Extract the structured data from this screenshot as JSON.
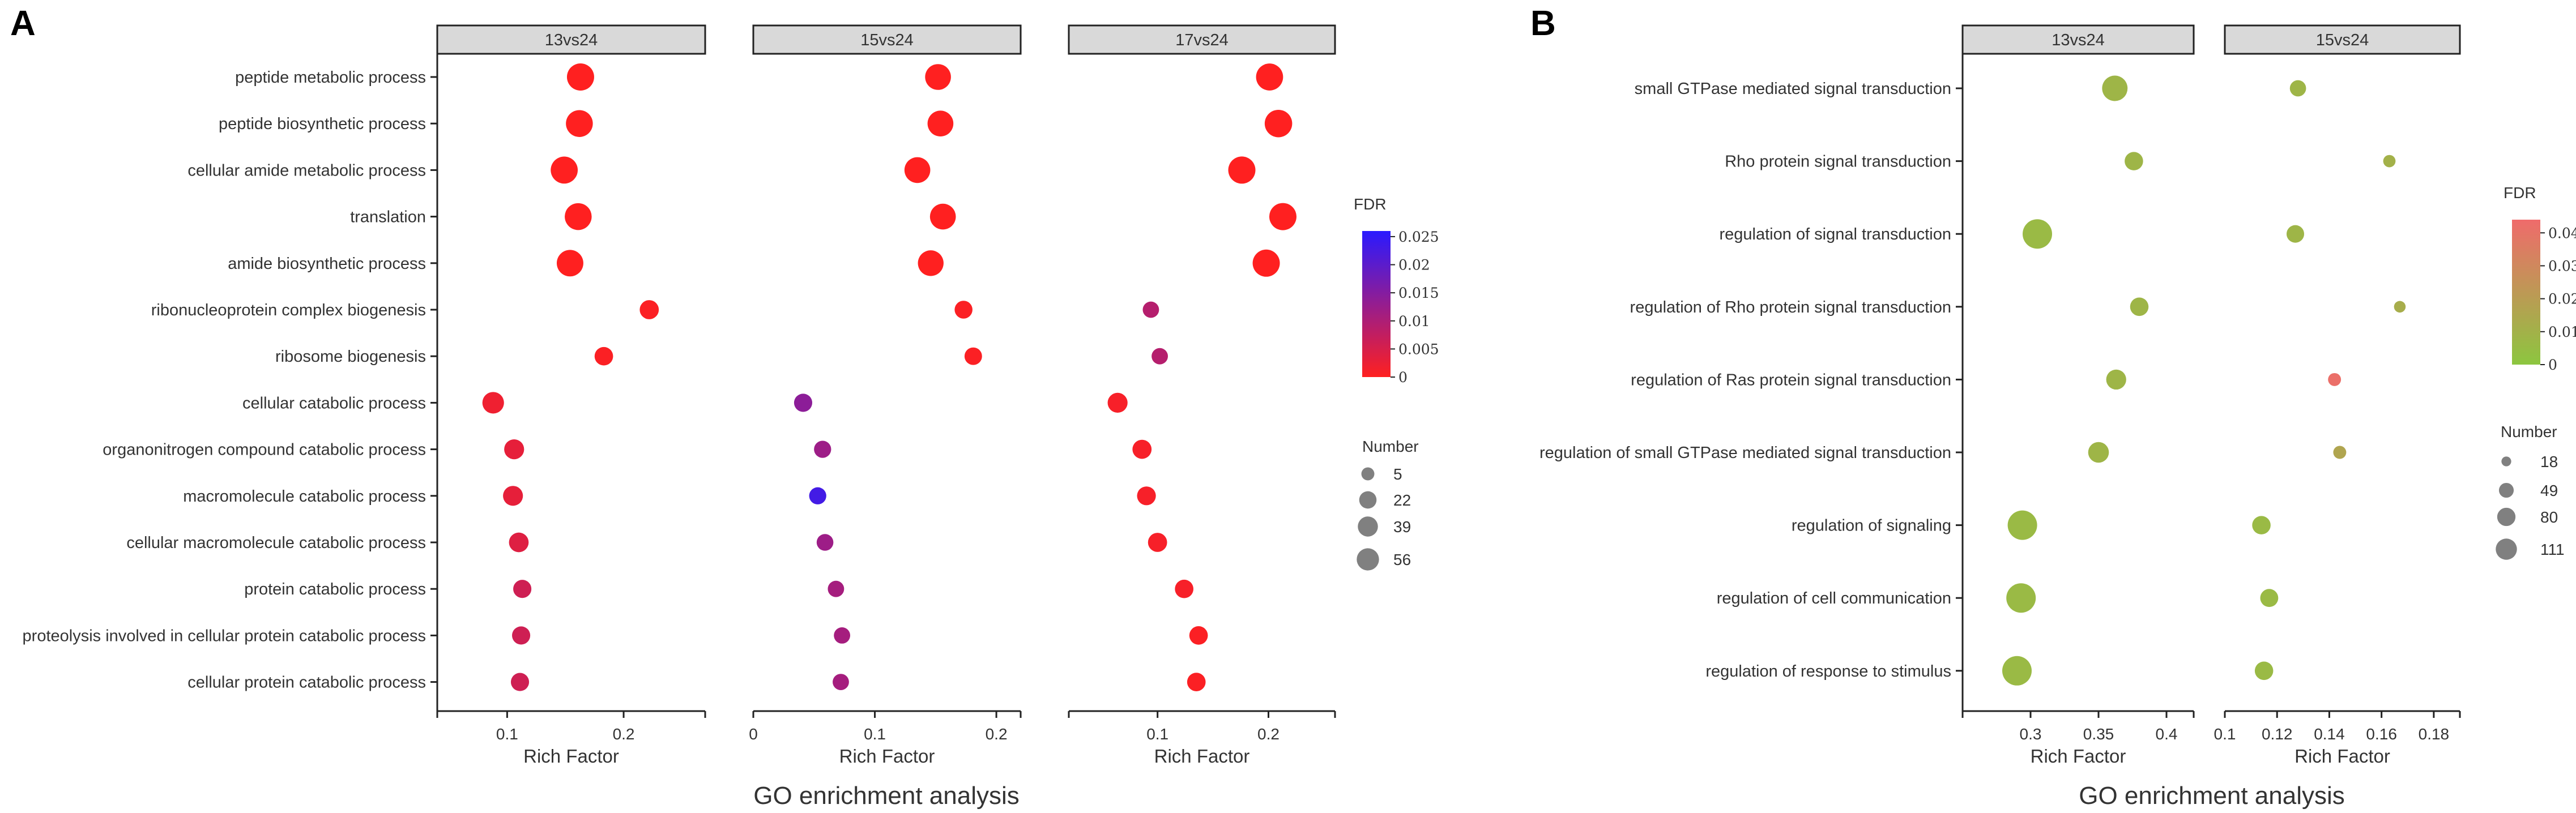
{
  "chart_data": [
    {
      "panel": "A",
      "type": "scatter",
      "caption": "GO enrichment analysis",
      "xlabel": "Rich Factor",
      "terms": [
        "peptide metabolic process",
        "peptide biosynthetic process",
        "cellular amide metabolic process",
        "translation",
        "amide biosynthetic process",
        "ribonucleoprotein complex biogenesis",
        "ribosome biogenesis",
        "cellular catabolic process",
        "organonitrogen compound catabolic process",
        "macromolecule catabolic process",
        "cellular macromolecule catabolic process",
        "protein catabolic process",
        "proteolysis involved in cellular protein catabolic process",
        "cellular protein catabolic process"
      ],
      "facets": [
        {
          "name": "13vs24",
          "xlim": [
            0.04,
            0.27
          ],
          "ticks": [
            0.1,
            0.2
          ],
          "tick_labels": [
            "0.1",
            "0.2"
          ],
          "points": [
            {
              "x": 0.163,
              "number": 56,
              "fdr": 0.0
            },
            {
              "x": 0.162,
              "number": 54,
              "fdr": 0.0
            },
            {
              "x": 0.149,
              "number": 55,
              "fdr": 0.0
            },
            {
              "x": 0.161,
              "number": 54,
              "fdr": 0.0
            },
            {
              "x": 0.154,
              "number": 52,
              "fdr": 0.0
            },
            {
              "x": 0.222,
              "number": 14,
              "fdr": 0.0005
            },
            {
              "x": 0.183,
              "number": 12,
              "fdr": 0.0005
            },
            {
              "x": 0.088,
              "number": 24,
              "fdr": 0.002
            },
            {
              "x": 0.106,
              "number": 17,
              "fdr": 0.003
            },
            {
              "x": 0.105,
              "number": 17,
              "fdr": 0.003
            },
            {
              "x": 0.11,
              "number": 16,
              "fdr": 0.004
            },
            {
              "x": 0.113,
              "number": 11,
              "fdr": 0.006
            },
            {
              "x": 0.112,
              "number": 11,
              "fdr": 0.006
            },
            {
              "x": 0.111,
              "number": 11,
              "fdr": 0.006
            }
          ]
        },
        {
          "name": "15vs24",
          "xlim": [
            0.0,
            0.22
          ],
          "ticks": [
            0,
            0.1,
            0.2
          ],
          "tick_labels": [
            "0",
            "0.1",
            "0.2"
          ],
          "points": [
            {
              "x": 0.152,
              "number": 47,
              "fdr": 0.0
            },
            {
              "x": 0.154,
              "number": 47,
              "fdr": 0.0
            },
            {
              "x": 0.135,
              "number": 47,
              "fdr": 0.0
            },
            {
              "x": 0.156,
              "number": 47,
              "fdr": 0.0
            },
            {
              "x": 0.146,
              "number": 46,
              "fdr": 0.0
            },
            {
              "x": 0.173,
              "number": 10,
              "fdr": 0.0005
            },
            {
              "x": 0.181,
              "number": 9,
              "fdr": 0.0005
            },
            {
              "x": 0.041,
              "number": 11,
              "fdr": 0.014
            },
            {
              "x": 0.057,
              "number": 8,
              "fdr": 0.012
            },
            {
              "x": 0.053,
              "number": 8,
              "fdr": 0.023
            },
            {
              "x": 0.059,
              "number": 7,
              "fdr": 0.012
            },
            {
              "x": 0.068,
              "number": 6,
              "fdr": 0.011
            },
            {
              "x": 0.073,
              "number": 6,
              "fdr": 0.011
            },
            {
              "x": 0.072,
              "number": 6,
              "fdr": 0.011
            }
          ]
        },
        {
          "name": "17vs24",
          "xlim": [
            0.02,
            0.26
          ],
          "ticks": [
            0.1,
            0.2
          ],
          "tick_labels": [
            "0.1",
            "0.2"
          ],
          "points": [
            {
              "x": 0.201,
              "number": 55,
              "fdr": 0.0
            },
            {
              "x": 0.209,
              "number": 58,
              "fdr": 0.0
            },
            {
              "x": 0.176,
              "number": 56,
              "fdr": 0.0
            },
            {
              "x": 0.213,
              "number": 56,
              "fdr": 0.0
            },
            {
              "x": 0.198,
              "number": 56,
              "fdr": 0.0
            },
            {
              "x": 0.094,
              "number": 6,
              "fdr": 0.009
            },
            {
              "x": 0.102,
              "number": 6,
              "fdr": 0.009
            },
            {
              "x": 0.064,
              "number": 17,
              "fdr": 0.001
            },
            {
              "x": 0.086,
              "number": 14,
              "fdr": 0.001
            },
            {
              "x": 0.09,
              "number": 13,
              "fdr": 0.001
            },
            {
              "x": 0.1,
              "number": 14,
              "fdr": 0.001
            },
            {
              "x": 0.124,
              "number": 12,
              "fdr": 0.001
            },
            {
              "x": 0.137,
              "number": 12,
              "fdr": 0.0005
            },
            {
              "x": 0.135,
              "number": 12,
              "fdr": 0.0005
            }
          ]
        }
      ],
      "fdr_legend": {
        "title": "FDR",
        "ticks": [
          "0.025",
          "0.02",
          "0.015",
          "0.01",
          "0.005",
          "0"
        ],
        "range": [
          0,
          0.026
        ],
        "low_color": "#ff2020",
        "high_color": "#2a1aff"
      },
      "size_legend": {
        "title": "Number",
        "values": [
          5,
          22,
          39,
          56
        ],
        "labels": [
          "5",
          "22",
          "39",
          "56"
        ],
        "color": "#808080"
      }
    },
    {
      "panel": "B",
      "type": "scatter",
      "caption": "GO enrichment analysis",
      "xlabel": "Rich Factor",
      "terms": [
        "small GTPase mediated signal transduction",
        "Rho protein signal transduction",
        "regulation of signal transduction",
        "regulation of Rho protein signal transduction",
        "regulation of Ras protein signal transduction",
        "regulation of small GTPase mediated signal transduction",
        "regulation of signaling",
        "regulation of cell communication",
        "regulation of response to stimulus"
      ],
      "facets": [
        {
          "name": "13vs24",
          "xlim": [
            0.25,
            0.42
          ],
          "ticks": [
            0.3,
            0.35,
            0.4
          ],
          "tick_labels": [
            "0.3",
            "0.35",
            "0.4"
          ],
          "points": [
            {
              "x": 0.362,
              "number": 80,
              "fdr": 0.008
            },
            {
              "x": 0.376,
              "number": 38,
              "fdr": 0.008
            },
            {
              "x": 0.305,
              "number": 111,
              "fdr": 0.006
            },
            {
              "x": 0.38,
              "number": 38,
              "fdr": 0.008
            },
            {
              "x": 0.363,
              "number": 46,
              "fdr": 0.008
            },
            {
              "x": 0.35,
              "number": 50,
              "fdr": 0.008
            },
            {
              "x": 0.294,
              "number": 111,
              "fdr": 0.006
            },
            {
              "x": 0.293,
              "number": 111,
              "fdr": 0.006
            },
            {
              "x": 0.29,
              "number": 111,
              "fdr": 0.006
            }
          ]
        },
        {
          "name": "15vs24",
          "xlim": [
            0.1,
            0.19
          ],
          "ticks": [
            0.1,
            0.12,
            0.14,
            0.16,
            0.18
          ],
          "tick_labels": [
            "0.1",
            "0.12",
            "0.14",
            "0.16",
            "0.18"
          ],
          "points": [
            {
              "x": 0.128,
              "number": 28,
              "fdr": 0.008
            },
            {
              "x": 0.163,
              "number": 14,
              "fdr": 0.01
            },
            {
              "x": 0.127,
              "number": 34,
              "fdr": 0.008
            },
            {
              "x": 0.167,
              "number": 12,
              "fdr": 0.012
            },
            {
              "x": 0.142,
              "number": 16,
              "fdr": 0.042
            },
            {
              "x": 0.144,
              "number": 16,
              "fdr": 0.016
            },
            {
              "x": 0.114,
              "number": 38,
              "fdr": 0.006
            },
            {
              "x": 0.117,
              "number": 36,
              "fdr": 0.006
            },
            {
              "x": 0.115,
              "number": 38,
              "fdr": 0.006
            }
          ]
        }
      ],
      "fdr_legend": {
        "title": "FDR",
        "ticks": [
          "0.04",
          "0.03",
          "0.02",
          "0.01",
          "0"
        ],
        "range": [
          0,
          0.044
        ],
        "low_color": "#8cc63f",
        "high_color": "#ef6b6b"
      },
      "size_legend": {
        "title": "Number",
        "values": [
          18,
          49,
          80,
          111
        ],
        "labels": [
          "18",
          "49",
          "80",
          "111"
        ],
        "color": "#808080"
      }
    }
  ],
  "panel_labels": [
    "A",
    "B"
  ]
}
